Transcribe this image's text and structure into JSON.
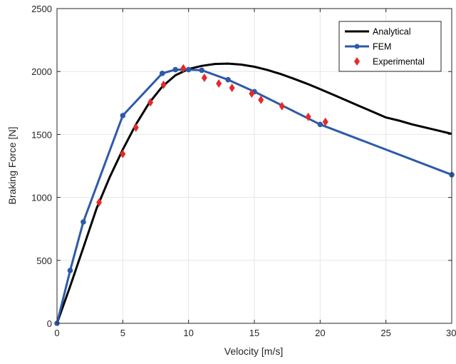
{
  "chart_data": {
    "type": "line",
    "title": "",
    "xlabel": "Velocity [m/s]",
    "ylabel": "Braking Force [N]",
    "xlim": [
      0,
      30
    ],
    "ylim": [
      0,
      2500
    ],
    "xticks": [
      0,
      5,
      10,
      15,
      20,
      25,
      30
    ],
    "yticks": [
      0,
      500,
      1000,
      1500,
      2000,
      2500
    ],
    "xtick_labels": [
      "0",
      "5",
      "10",
      "15",
      "20",
      "25",
      "30"
    ],
    "ytick_labels": [
      "0",
      "500",
      "1000",
      "1500",
      "2000",
      "2500"
    ],
    "grid": true,
    "legend_position": "top-right",
    "series": [
      {
        "name": "Analytical",
        "style": "line",
        "color": "#000000",
        "x": [
          0,
          1,
          2,
          3,
          4,
          5,
          6,
          7,
          8,
          9,
          10,
          11,
          12,
          13,
          14,
          15,
          16,
          17,
          18,
          19,
          20,
          21,
          22,
          23,
          24,
          25,
          26,
          27,
          28,
          29,
          30
        ],
        "y": [
          0,
          295,
          600,
          910,
          1160,
          1380,
          1580,
          1750,
          1880,
          1970,
          2020,
          2045,
          2060,
          2063,
          2055,
          2038,
          2012,
          1980,
          1943,
          1903,
          1860,
          1815,
          1770,
          1725,
          1680,
          1635,
          1610,
          1580,
          1555,
          1530,
          1505
        ]
      },
      {
        "name": "FEM",
        "style": "line-marker",
        "color": "#2e5aa8",
        "x": [
          0,
          1,
          2,
          5,
          8,
          9,
          10,
          11,
          13,
          15,
          20,
          30
        ],
        "y": [
          0,
          420,
          805,
          1650,
          1985,
          2015,
          2015,
          2010,
          1935,
          1840,
          1580,
          1180
        ]
      },
      {
        "name": "Experimental",
        "style": "marker",
        "color": "#e52a2a",
        "x": [
          3.2,
          5,
          6,
          7.1,
          8.1,
          9.6,
          11.2,
          12.3,
          13.3,
          14.8,
          15.5,
          17.1,
          19.1,
          20.4
        ],
        "y": [
          960,
          1345,
          1555,
          1755,
          1895,
          2025,
          1950,
          1905,
          1870,
          1825,
          1775,
          1725,
          1640,
          1600
        ]
      }
    ]
  }
}
